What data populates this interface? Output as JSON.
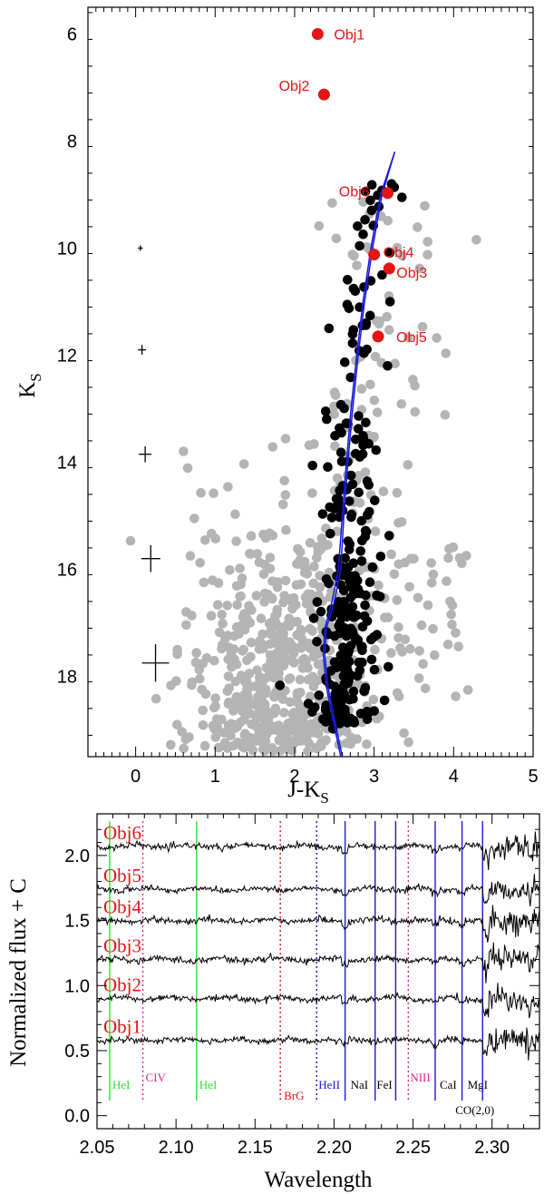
{
  "chart_data": [
    {
      "type": "scatter",
      "xlabel": "J-K",
      "xlabel_sub": "S",
      "ylabel": "K",
      "ylabel_sub": "S",
      "xlim": [
        -0.6,
        5
      ],
      "ylim": [
        19.5,
        5.5
      ],
      "xticks": [
        "0",
        "1",
        "2",
        "3",
        "4",
        "5"
      ],
      "yticks": [
        "6",
        "8",
        "10",
        "12",
        "14",
        "16",
        "18"
      ],
      "labeled_points": [
        {
          "label": "Obj1",
          "x": 2.29,
          "y": 6.0
        },
        {
          "label": "Obj2",
          "x": 2.37,
          "y": 7.13
        },
        {
          "label": "Obj6",
          "x": 3.17,
          "y": 8.97
        },
        {
          "label": "Obj4",
          "x": 3.0,
          "y": 10.12
        },
        {
          "label": "Obj3",
          "x": 3.19,
          "y": 10.38
        },
        {
          "label": "Obj5",
          "x": 3.05,
          "y": 11.65
        }
      ],
      "error_bars": [
        {
          "x": 0.06,
          "y": 10.0,
          "dx": 0.03,
          "dy": 0.05
        },
        {
          "x": 0.08,
          "y": 11.9,
          "dx": 0.05,
          "dy": 0.09
        },
        {
          "x": 0.12,
          "y": 13.85,
          "dx": 0.08,
          "dy": 0.15
        },
        {
          "x": 0.19,
          "y": 15.8,
          "dx": 0.12,
          "dy": 0.25
        },
        {
          "x": 0.25,
          "y": 17.75,
          "dx": 0.17,
          "dy": 0.35
        }
      ],
      "isochrone_1": [
        [
          3.26,
          8.2
        ],
        [
          3.1,
          9.0
        ],
        [
          2.98,
          10.0
        ],
        [
          2.88,
          11.0
        ],
        [
          2.8,
          12.0
        ],
        [
          2.73,
          13.0
        ],
        [
          2.67,
          14.0
        ],
        [
          2.62,
          15.0
        ],
        [
          2.58,
          16.0
        ],
        [
          2.5,
          16.6
        ],
        [
          2.4,
          17.1
        ],
        [
          2.38,
          17.6
        ],
        [
          2.42,
          18.2
        ],
        [
          2.5,
          18.8
        ],
        [
          2.6,
          19.5
        ]
      ],
      "isochrone_2": [
        [
          3.26,
          8.2
        ],
        [
          3.08,
          9.0
        ],
        [
          2.96,
          10.0
        ],
        [
          2.86,
          11.0
        ],
        [
          2.78,
          12.0
        ],
        [
          2.71,
          13.0
        ],
        [
          2.65,
          14.0
        ],
        [
          2.6,
          15.0
        ],
        [
          2.55,
          16.0
        ],
        [
          2.47,
          16.6
        ],
        [
          2.38,
          17.1
        ],
        [
          2.36,
          17.6
        ],
        [
          2.4,
          18.2
        ],
        [
          2.48,
          18.8
        ],
        [
          2.58,
          19.5
        ]
      ],
      "colors": {
        "members": "#000000",
        "field": "#b4b4b4",
        "objects": "#e31515",
        "isochrone": "#1a1ad6"
      }
    },
    {
      "type": "line",
      "xlabel": "Wavelength",
      "ylabel": "Normalized flux + C",
      "xlim": [
        2.05,
        2.33
      ],
      "ylim": [
        -0.1,
        2.32
      ],
      "xticks": [
        "2.05",
        "2.10",
        "2.15",
        "2.20",
        "2.25",
        "2.30"
      ],
      "yticks": [
        "0.0",
        "0.5",
        "1.0",
        "1.5",
        "2.0"
      ],
      "series": [
        {
          "name": "Obj1",
          "offset": 0.58
        },
        {
          "name": "Obj2",
          "offset": 0.9
        },
        {
          "name": "Obj3",
          "offset": 1.2
        },
        {
          "name": "Obj4",
          "offset": 1.5
        },
        {
          "name": "Obj5",
          "offset": 1.74
        },
        {
          "name": "Obj6",
          "offset": 2.07
        }
      ],
      "lines": [
        {
          "label": "HeI",
          "x": 2.058,
          "style": "solid",
          "color": "#33dd33"
        },
        {
          "label": "CIV",
          "x": 2.079,
          "style": "dotted",
          "color": "#e0208e"
        },
        {
          "label": "HeI",
          "x": 2.113,
          "style": "solid",
          "color": "#33dd33"
        },
        {
          "label": "BrG",
          "x": 2.166,
          "style": "dotted",
          "color": "#e31515"
        },
        {
          "label": "HeII",
          "x": 2.189,
          "style": "dotted",
          "color": "#1a1ad6"
        },
        {
          "label": "NaI",
          "x": 2.207,
          "style": "solid",
          "color": "#1a1ad6"
        },
        {
          "label": "",
          "x": 2.226,
          "style": "solid",
          "color": "#1a1ad6"
        },
        {
          "label": "FeI",
          "x": 2.239,
          "style": "solid",
          "color": "#1a1ad6"
        },
        {
          "label": "NIII",
          "x": 2.247,
          "style": "dotted",
          "color": "#e0208e"
        },
        {
          "label": "CaI",
          "x": 2.264,
          "style": "solid",
          "color": "#1a1ad6"
        },
        {
          "label": "MgI",
          "x": 2.281,
          "style": "solid",
          "color": "#1a1ad6"
        },
        {
          "label": "",
          "x": 2.294,
          "style": "solid",
          "color": "#1a1ad6"
        }
      ],
      "extra_label": "CO(2,0)",
      "colors": {
        "spectra": "#000000",
        "labels": "#e31515"
      }
    }
  ]
}
